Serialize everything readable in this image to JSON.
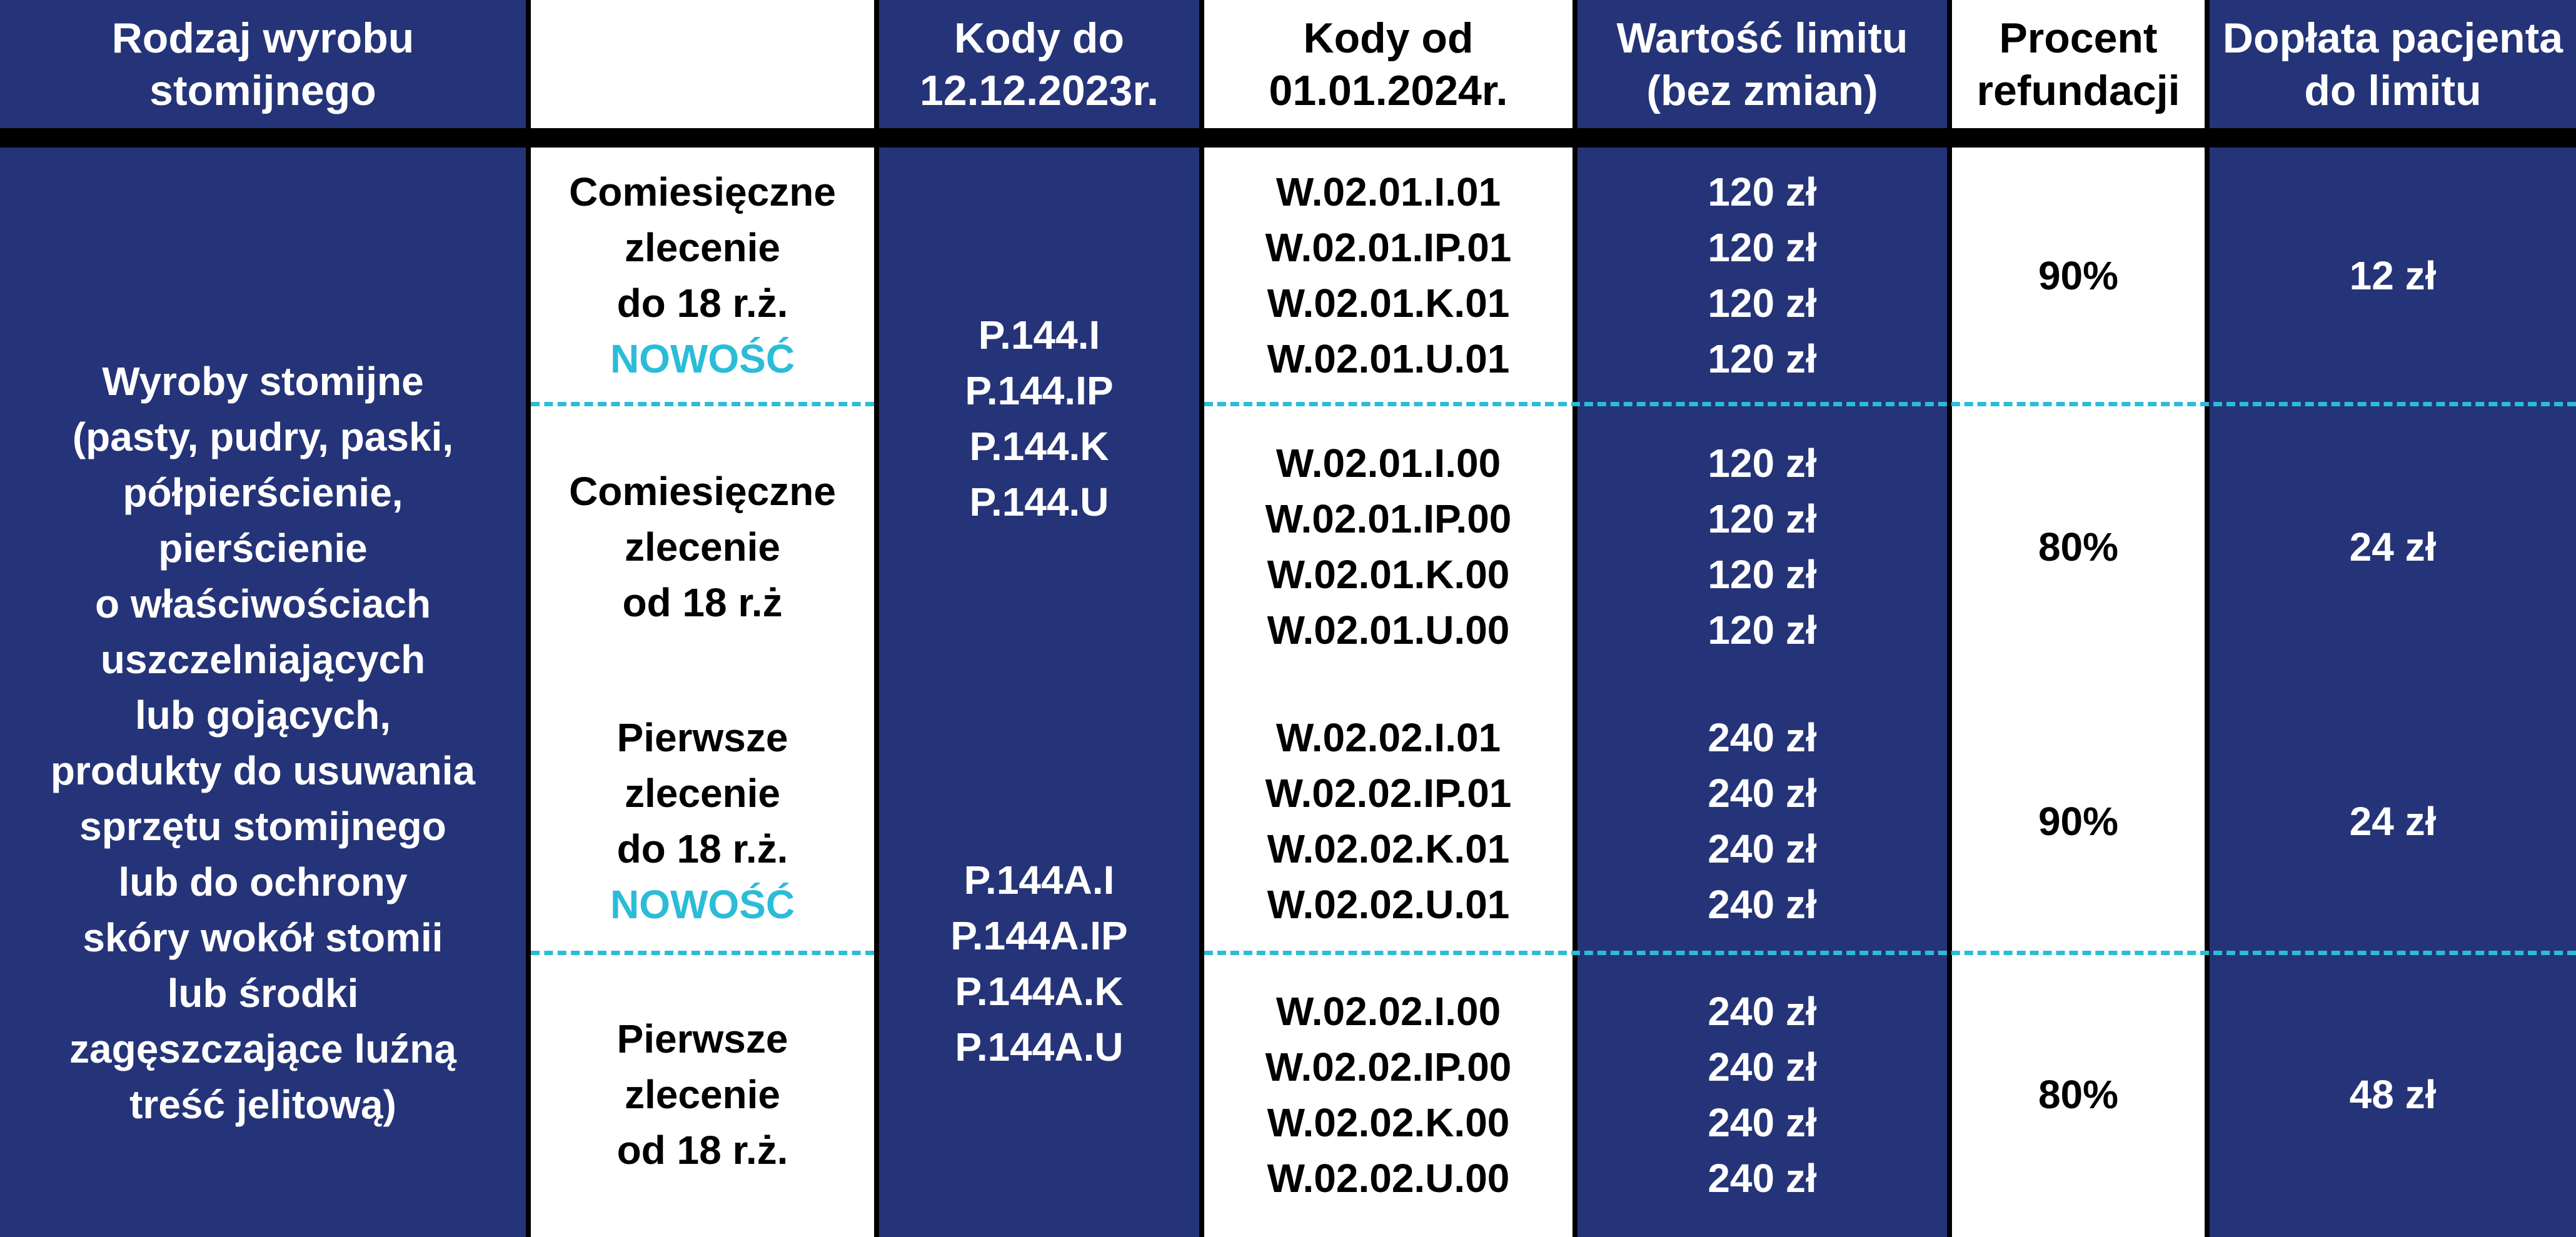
{
  "header": {
    "col1": [
      "Rodzaj wyrobu",
      "stomijnego"
    ],
    "col2": [],
    "col3": [
      "Kody do",
      "12.12.2023r."
    ],
    "col4": [
      "Kody od",
      "01.01.2024r."
    ],
    "col5": [
      "Wartość limitu",
      "(bez zmian)"
    ],
    "col6": [
      "Procent",
      "refundacji"
    ],
    "col7": [
      "Dopłata pacjenta",
      "do limitu"
    ]
  },
  "product": [
    "Wyroby stomijne",
    "(pasty, pudry, paski,",
    "półpierścienie,",
    "pierścienie",
    "o właściwościach",
    "uszczelniających",
    "lub gojących,",
    "produkty do usuwania",
    "sprzętu stomijnego",
    "lub do ochrony",
    "skóry wokół stomii",
    "lub środki",
    "zagęszczające luźną",
    "treść jelitową)"
  ],
  "groups": [
    {
      "old_codes": [
        "P.144.I",
        "P.144.IP",
        "P.144.K",
        "P.144.U"
      ],
      "rows": [
        {
          "order": [
            "Comiesięczne",
            "zlecenie",
            "do 18 r.ż."
          ],
          "badge": "NOWOŚĆ",
          "codes": [
            "W.02.01.I.01",
            "W.02.01.IP.01",
            "W.02.01.K.01",
            "W.02.01.U.01"
          ],
          "limits": [
            "120 zł",
            "120 zł",
            "120 zł",
            "120 zł"
          ],
          "percent": "90%",
          "copay": "12 zł"
        },
        {
          "order": [
            "Comiesięczne",
            "zlecenie",
            "od 18 r.ż"
          ],
          "badge": "",
          "codes": [
            "W.02.01.I.00",
            "W.02.01.IP.00",
            "W.02.01.K.00",
            "W.02.01.U.00"
          ],
          "limits": [
            "120 zł",
            "120 zł",
            "120 zł",
            "120 zł"
          ],
          "percent": "80%",
          "copay": "24 zł"
        }
      ]
    },
    {
      "old_codes": [
        "P.144A.I",
        "P.144A.IP",
        "P.144A.K",
        "P.144A.U"
      ],
      "rows": [
        {
          "order": [
            "Pierwsze",
            "zlecenie",
            "do 18 r.ż."
          ],
          "badge": "NOWOŚĆ",
          "codes": [
            "W.02.02.I.01",
            "W.02.02.IP.01",
            "W.02.02.K.01",
            "W.02.02.U.01"
          ],
          "limits": [
            "240 zł",
            "240 zł",
            "240 zł",
            "240 zł"
          ],
          "percent": "90%",
          "copay": "24 zł"
        },
        {
          "order": [
            "Pierwsze",
            "zlecenie",
            "od 18 r.ż."
          ],
          "badge": "",
          "codes": [
            "W.02.02.I.00",
            "W.02.02.IP.00",
            "W.02.02.K.00",
            "W.02.02.U.00"
          ],
          "limits": [
            "240 zł",
            "240 zł",
            "240 zł",
            "240 zł"
          ],
          "percent": "80%",
          "copay": "48 zł"
        }
      ]
    }
  ],
  "colors": {
    "navy": "#253478",
    "accent": "#2bbcd8",
    "white": "#ffffff",
    "divider": "#000000"
  }
}
